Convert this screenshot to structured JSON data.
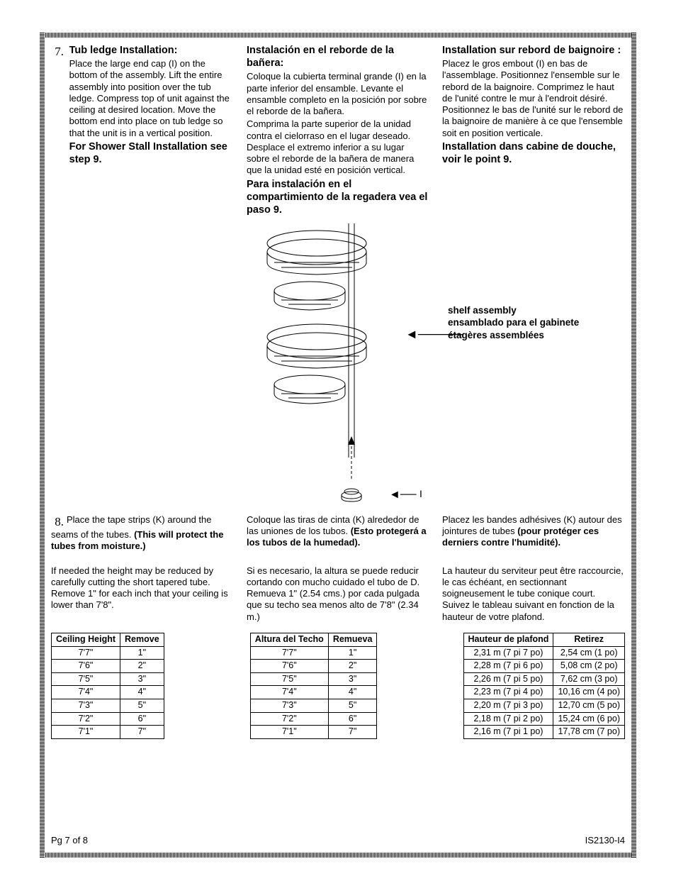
{
  "step7": {
    "num": "7.",
    "en": {
      "h": "Tub ledge Installation:",
      "p": "Place the large end cap (I) on the bottom of the assembly. Lift the entire assembly into position over the tub ledge. Compress top of unit against the ceiling at desired location. Move the bottom end into place on tub ledge so that the unit is in a vertical position.",
      "b": "For Shower Stall Installation see step 9."
    },
    "es": {
      "h": "Instalación en el reborde de la bañera:",
      "p1": "Coloque la cubierta terminal grande (I) en la parte inferior del ensamble. Levante el ensamble completo en la posición por sobre el reborde de la bañera.",
      "p2": "Comprima la parte superior de la unidad contra el cielorraso en el lugar deseado.  Desplace el extremo inferior a su lugar sobre el reborde de la bañera de manera que la unidad esté en posición vertical.",
      "b": "Para instalación en el compartimiento de la regadera vea el paso 9."
    },
    "fr": {
      "h": "Installation sur rebord de baignoire :",
      "p": "Placez le gros embout (I) en bas de l'assemblage. Positionnez l'ensemble sur le rebord de la baignoire. Comprimez le haut de l'unité contre le mur à l'endroit désiré. Positionnez le bas de l'unité sur le rebord de la baignoire de manière à ce que l'ensemble soit en position verticale.",
      "b": "Installation dans cabine de douche, voir le point 9."
    }
  },
  "diagram": {
    "label_en": "shelf assembly",
    "label_es": "ensamblado para el gabinete",
    "label_fr": "étagères assemblées",
    "i": "I"
  },
  "step8": {
    "num": "8.",
    "en": {
      "p1a": "Place the tape strips (K) around the seams of the tubes. ",
      "p1b": "(This will protect the tubes from moisture.)",
      "p2": "If needed the height may be reduced by carefully cutting the short tapered tube. Remove 1\" for each inch that your ceiling is lower than 7'8\"."
    },
    "es": {
      "p1a": "Coloque las tiras de cinta (K) alrededor de las uniones de los tubos. ",
      "p1b": "(Esto protegerá a los tubos de la humedad).",
      "p2": "Si es necesario, la altura se puede reducir cortando con mucho cuidado el tubo de D. Remueva 1\" (2.54 cms.) por cada pulgada que su techo sea menos alto de 7'8\" (2.34 m.)"
    },
    "fr": {
      "p1a": "Placez les bandes adhésives (K) autour des jointures de tubes ",
      "p1b": "(pour protéger ces derniers contre l'humidité).",
      "p2": "La hauteur du serviteur peut être raccourcie, le cas échéant, en sectionnant soigneusement le tube conique court. Suivez le tableau suivant en fonction de la hauteur de votre plafond."
    }
  },
  "tables": {
    "en": {
      "h1": "Ceiling Height",
      "h2": "Remove",
      "rows": [
        [
          "7'7\"",
          "1\""
        ],
        [
          "7'6\"",
          "2\""
        ],
        [
          "7'5\"",
          "3\""
        ],
        [
          "7'4\"",
          "4\""
        ],
        [
          "7'3\"",
          "5\""
        ],
        [
          "7'2\"",
          "6\""
        ],
        [
          "7'1\"",
          "7\""
        ]
      ]
    },
    "es": {
      "h1": "Altura del Techo",
      "h2": "Remueva",
      "rows": [
        [
          "7'7\"",
          "1\""
        ],
        [
          "7'6\"",
          "2\""
        ],
        [
          "7'5\"",
          "3\""
        ],
        [
          "7'4\"",
          "4\""
        ],
        [
          "7'3\"",
          "5\""
        ],
        [
          "7'2\"",
          "6\""
        ],
        [
          "7'1\"",
          "7\""
        ]
      ]
    },
    "fr": {
      "h1": "Hauteur de plafond",
      "h2": "Retirez",
      "rows": [
        [
          "2,31 m (7 pi 7 po)",
          "2,54 cm (1 po)"
        ],
        [
          "2,28 m (7 pi 6 po)",
          "5,08 cm (2 po)"
        ],
        [
          "2,26 m (7 pi 5 po)",
          "7,62 cm (3 po)"
        ],
        [
          "2,23 m (7 pi 4 po)",
          "10,16 cm (4 po)"
        ],
        [
          "2,20 m (7 pi 3 po)",
          "12,70 cm (5 po)"
        ],
        [
          "2,18 m (7 pi 2 po)",
          "15,24 cm (6 po)"
        ],
        [
          "2,16 m (7 pi 1 po)",
          "17,78 cm (7 po)"
        ]
      ]
    }
  },
  "footer": {
    "left": "Pg 7 of 8",
    "right": "IS2130-I4"
  }
}
